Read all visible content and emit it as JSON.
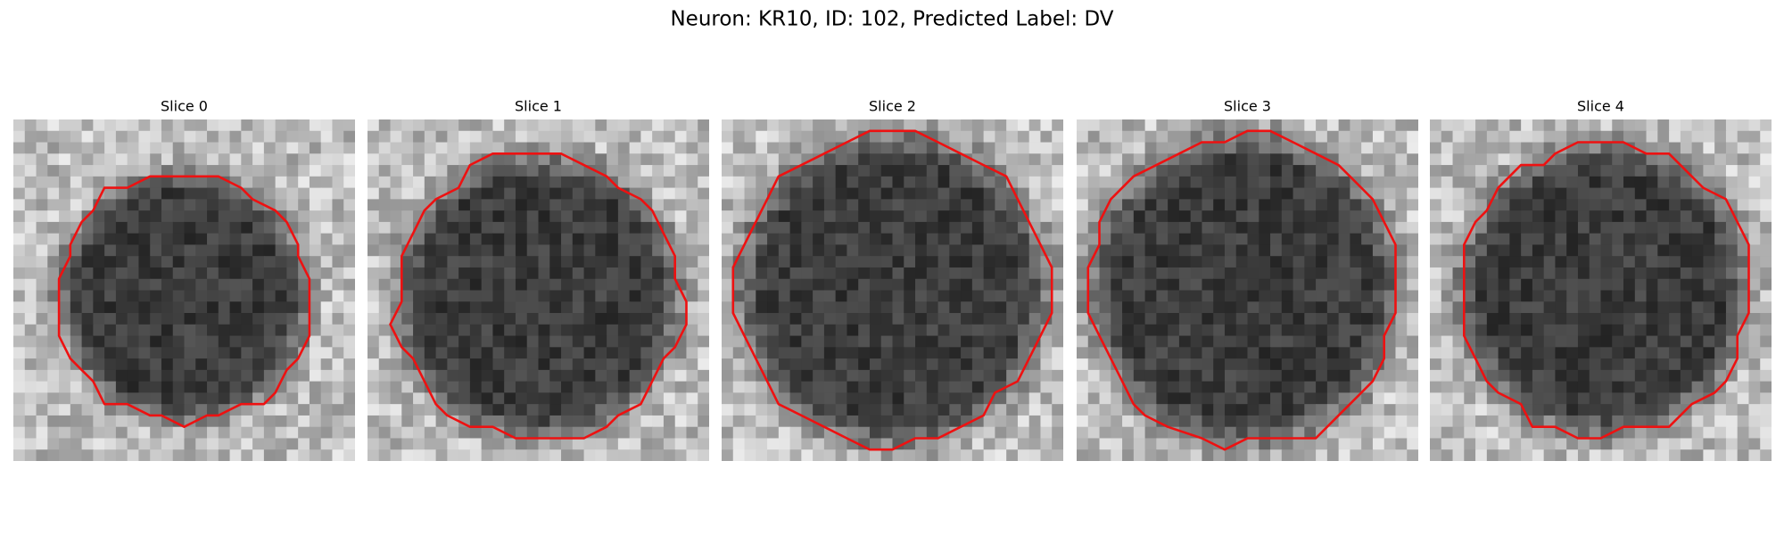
{
  "figure": {
    "title": "Neuron: KR10, ID: 102, Predicted Label: DV",
    "panels": [
      {
        "title": "Slice 0"
      },
      {
        "title": "Slice 1"
      },
      {
        "title": "Slice 2"
      },
      {
        "title": "Slice 3"
      },
      {
        "title": "Slice 4"
      }
    ]
  }
}
